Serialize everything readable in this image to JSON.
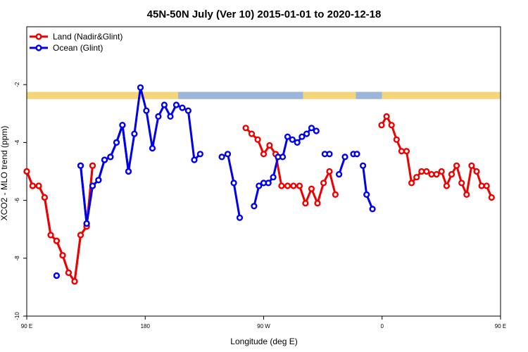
{
  "chart_data": {
    "type": "line",
    "title": "45N-50N July (Ver 10)   2015-01-01 to 2020-12-18",
    "xlabel": "Longitude (deg E)",
    "ylabel": "XCO2 - MLO trend (ppm)",
    "xlim": [
      90,
      450
    ],
    "ylim": [
      -10,
      0
    ],
    "x_ticks": [
      {
        "value": 90,
        "label": "90 E"
      },
      {
        "value": 180,
        "label": "180"
      },
      {
        "value": 270,
        "label": "90 W"
      },
      {
        "value": 360,
        "label": "0"
      },
      {
        "value": 450,
        "label": "90 E"
      },
      {
        "value": 540,
        "label": "180"
      }
    ],
    "y_ticks": [
      {
        "value": -10,
        "label": "-10"
      },
      {
        "value": -8,
        "label": "-8"
      },
      {
        "value": -6,
        "label": "-6"
      },
      {
        "value": -4,
        "label": "-4"
      },
      {
        "value": -2,
        "label": "-2"
      }
    ],
    "legend": {
      "position": "top-left"
    },
    "series": [
      {
        "name": "Land (Nadir&Glint)",
        "color": "#ee0000",
        "points": [
          [
            -270.0,
            -5.0
          ],
          [
            -265.5,
            -5.5
          ],
          [
            -260.9,
            -5.5
          ],
          [
            -256.4,
            -5.9
          ],
          [
            -251.8,
            -7.2
          ],
          [
            -247.3,
            -7.4
          ],
          [
            -242.7,
            -7.9
          ],
          [
            -238.2,
            -8.5
          ],
          [
            -233.6,
            -8.8
          ],
          [
            -229.1,
            -7.2
          ],
          [
            -224.5,
            -6.9
          ],
          [
            -220.0,
            -4.8
          ],
          null,
          [
            -103.6,
            -3.5
          ],
          [
            -99.1,
            -3.7
          ],
          [
            -94.5,
            -3.9
          ],
          [
            -90.0,
            -4.4
          ],
          [
            -85.5,
            -4.1
          ],
          [
            -80.9,
            -4.4
          ],
          [
            -76.4,
            -5.5
          ],
          [
            -71.8,
            -5.5
          ],
          [
            -67.3,
            -5.5
          ],
          [
            -62.7,
            -5.5
          ],
          [
            -58.2,
            -6.1
          ],
          [
            -53.6,
            -5.6
          ],
          [
            -49.1,
            -6.1
          ],
          [
            -44.5,
            -5.4
          ],
          [
            -40.0,
            -5.0
          ],
          [
            -35.5,
            -5.8
          ],
          null,
          [
            -0.4,
            -3.4
          ],
          [
            3.4,
            -3.1
          ],
          [
            7.2,
            -3.4
          ],
          [
            11.0,
            -3.9
          ],
          [
            14.8,
            -4.3
          ],
          [
            18.6,
            -4.3
          ],
          [
            22.4,
            -5.4
          ],
          [
            26.2,
            -5.2
          ],
          [
            30.0,
            -5.0
          ],
          [
            33.8,
            -5.0
          ],
          [
            37.6,
            -5.1
          ],
          [
            41.4,
            -5.1
          ],
          [
            45.2,
            -5.0
          ],
          [
            49.0,
            -5.5
          ],
          [
            52.8,
            -5.1
          ],
          [
            56.6,
            -4.8
          ],
          [
            60.4,
            -5.4
          ],
          [
            64.2,
            -5.8
          ],
          [
            68.0,
            -4.8
          ],
          [
            71.8,
            -5.0
          ],
          [
            75.6,
            -5.5
          ],
          [
            79.4,
            -5.5
          ],
          [
            83.2,
            -5.9
          ],
          null,
          [
            90.0,
            -5.0
          ],
          [
            94.5,
            -5.5
          ],
          [
            99.1,
            -5.5
          ],
          [
            103.6,
            -5.9
          ],
          [
            108.2,
            -7.2
          ],
          [
            112.7,
            -7.4
          ],
          [
            117.3,
            -7.9
          ],
          [
            121.8,
            -8.5
          ],
          [
            126.4,
            -8.8
          ],
          [
            130.9,
            -7.2
          ],
          [
            135.5,
            -6.9
          ],
          [
            140.0,
            -4.8
          ]
        ]
      },
      {
        "name": "Ocean (Glint)",
        "color": "#0000ee",
        "points": [
          [
            -247.3,
            -8.6
          ],
          null,
          [
            -229.1,
            -4.8
          ],
          [
            -224.5,
            -6.8
          ],
          [
            -220.0,
            -5.5
          ],
          [
            -215.5,
            -5.3
          ],
          [
            -210.9,
            -4.6
          ],
          [
            -206.4,
            -4.5
          ],
          [
            -201.8,
            -4.0
          ],
          [
            -197.3,
            -3.4
          ],
          [
            -192.7,
            -5.0
          ],
          [
            -188.2,
            -3.7
          ],
          [
            -183.6,
            -2.1
          ],
          [
            -179.1,
            -2.9
          ],
          [
            -174.5,
            -4.2
          ],
          [
            -170.0,
            -3.1
          ],
          [
            -165.5,
            -2.7
          ],
          [
            -160.9,
            -3.1
          ],
          [
            -156.4,
            -2.7
          ],
          [
            -151.8,
            -2.8
          ],
          [
            -147.3,
            -2.9
          ],
          [
            -142.7,
            -4.6
          ],
          [
            -138.2,
            -4.4
          ],
          null,
          [
            -121.8,
            -4.5
          ],
          [
            -117.3,
            -4.4
          ],
          [
            -112.7,
            -5.4
          ],
          [
            -108.2,
            -6.6
          ],
          null,
          [
            -97.3,
            -6.2
          ],
          [
            -93.6,
            -5.5
          ],
          [
            -90.0,
            -5.4
          ],
          [
            -86.4,
            -5.4
          ],
          [
            -82.7,
            -5.2
          ],
          [
            -79.1,
            -4.5
          ],
          [
            -75.5,
            -4.5
          ],
          [
            -71.8,
            -3.8
          ],
          [
            -68.2,
            -3.9
          ],
          [
            -64.5,
            -4.0
          ],
          [
            -60.9,
            -3.8
          ],
          [
            -57.3,
            -3.7
          ],
          [
            -53.6,
            -3.5
          ],
          [
            -50.0,
            -3.6
          ],
          null,
          [
            -43.5,
            -4.4
          ],
          [
            -40.0,
            -4.4
          ],
          null,
          [
            -32.7,
            -5.1
          ],
          [
            -28.2,
            -4.5
          ],
          null,
          [
            -21.8,
            -4.4
          ],
          [
            -19.1,
            -4.4
          ],
          null,
          [
            -14.5,
            -4.8
          ],
          [
            -11.8,
            -5.8
          ],
          [
            -7.3,
            -6.3
          ],
          null,
          [
            112.7,
            -8.6
          ],
          null,
          [
            130.9,
            -4.8
          ],
          [
            135.5,
            -6.8
          ],
          [
            140.0,
            -5.5
          ],
          [
            144.5,
            -5.3
          ],
          [
            149.1,
            -4.6
          ],
          [
            153.6,
            -4.5
          ],
          [
            158.2,
            -4.0
          ],
          [
            162.7,
            -3.4
          ],
          [
            167.3,
            -5.0
          ]
        ]
      }
    ],
    "land_ocean_strip": {
      "y_range": [
        -2.5,
        -2.25
      ],
      "land_color": "#f5d57a",
      "ocean_color": "#9cb5d8",
      "segments": [
        {
          "x0": 90,
          "x1": 205,
          "type": "land"
        },
        {
          "x0": 205,
          "x1": 300,
          "type": "ocean"
        },
        {
          "x0": 300,
          "x1": 340,
          "type": "land"
        },
        {
          "x0": 340,
          "x1": 360,
          "type": "ocean"
        },
        {
          "x0": 360,
          "x1": 450,
          "type": "land"
        }
      ]
    }
  }
}
